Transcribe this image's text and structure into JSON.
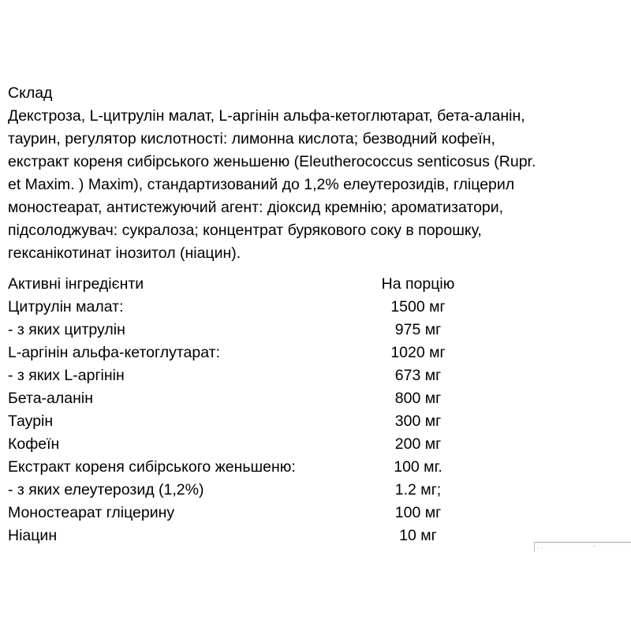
{
  "colors": {
    "background": "#ffffff",
    "text": "#000000",
    "widget_border": "#a9a9a9",
    "widget_marks": "#9a9a9a"
  },
  "document": {
    "title": "Склад",
    "ingredients_paragraph_lines": [
      "Декстроза, L-цитрулін малат, L-аргінін альфа-кетоглютарат, бета-аланін,",
      "таурин, регулятор кислотності: лимонна кислота; безводний кофеїн,",
      "екстракт кореня сибірського женьшеню (Eleutherococcus senticosus (Rupr.",
      "et Maxim. ) Maxim), стандартизований до 1,2% елеутерозидів, гліцерил",
      "моностеарат, антистежуючий агент: діоксид кремнію; ароматизатори,",
      "підсолоджувач: сукралоза; концентрат бурякового соку в порошку,",
      "гексанікотинат інозитол (ніацин)."
    ],
    "active_ingredients_table": {
      "header": {
        "name": "Активні інгредієнти",
        "amount": "На порцію"
      },
      "rows": [
        {
          "name": "Цитрулін малат:",
          "amount": "1500 мг"
        },
        {
          "name": "- з яких цитрулін",
          "amount": "975 мг"
        },
        {
          "name": "L-аргінін альфа-кетоглутарат:",
          "amount": "1020 мг"
        },
        {
          "name": "- з яких L-аргінін",
          "amount": "673 мг"
        },
        {
          "name": "Бета-аланін",
          "amount": "800 мг"
        },
        {
          "name": "Таурін",
          "amount": "300 мг"
        },
        {
          "name": "Кофеїн",
          "amount": "200 мг"
        },
        {
          "name": "Екстракт кореня сибірського женьшеню:",
          "amount": "100 мг."
        },
        {
          "name": "- з яких елеутерозид (1,2%)",
          "amount": "1.2 мг;"
        },
        {
          "name": "Моностеарат гліцерину",
          "amount": "100 мг"
        },
        {
          "name": "Ніацин",
          "amount": "10 мг"
        }
      ]
    }
  },
  "cropped_widget": {
    "left_marks": "..",
    "right_mark": "-"
  }
}
